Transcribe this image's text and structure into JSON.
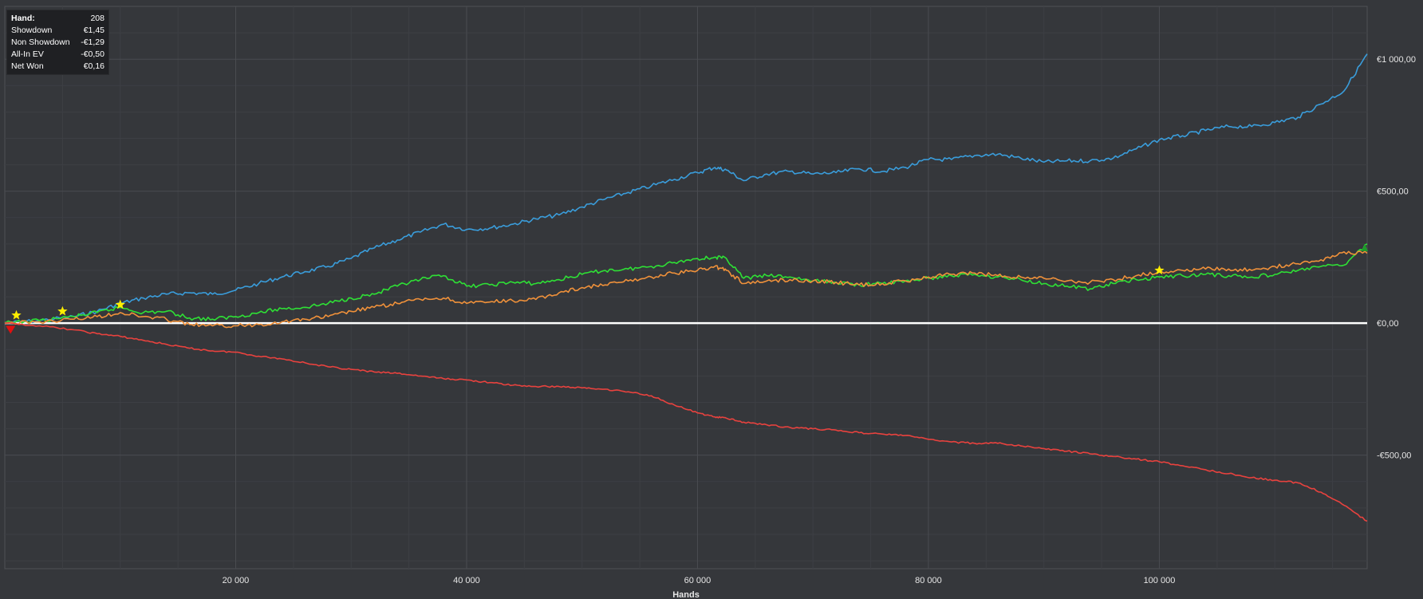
{
  "colors": {
    "background": "#35373b",
    "plot_background": "#35373b",
    "grid": "#4a4c51",
    "zero_line": "#ffffff",
    "blue": "#3a9ddb",
    "green": "#2ee035",
    "orange": "#f0913a",
    "red": "#e8423e",
    "star": "#ffee00",
    "down_marker": "#e01010"
  },
  "stats": {
    "rows": [
      {
        "label": "Hand:",
        "value": "208"
      },
      {
        "label": "Showdown",
        "value": "€1,45"
      },
      {
        "label": "Non Showdown",
        "value": "-€1,29"
      },
      {
        "label": "All-In EV",
        "value": "-€0,50"
      },
      {
        "label": "Net Won",
        "value": "€0,16"
      }
    ]
  },
  "chart_data": {
    "type": "line",
    "title": "",
    "xlabel": "Hands",
    "ylabel": "",
    "xlim": [
      0,
      118000
    ],
    "ylim": [
      -930,
      1200
    ],
    "x_ticks": [
      20000,
      40000,
      60000,
      80000,
      100000
    ],
    "x_tick_labels": [
      "20 000",
      "40 000",
      "60 000",
      "80 000",
      "100 000"
    ],
    "y_ticks": [
      1000,
      500,
      0,
      -500
    ],
    "y_tick_labels": [
      "€1 000,00",
      "€500,00",
      "€0,00",
      "-€500,00"
    ],
    "grid": true,
    "legend": "none",
    "series": [
      {
        "color_key": "blue",
        "x": [
          0,
          3000,
          6000,
          8000,
          10000,
          12000,
          14000,
          16000,
          18000,
          20000,
          22000,
          24000,
          26000,
          28000,
          30000,
          32000,
          34000,
          36000,
          38000,
          40000,
          42000,
          44000,
          46000,
          48000,
          50000,
          52000,
          54000,
          56000,
          58000,
          60000,
          61500,
          62500,
          64000,
          66000,
          68000,
          70000,
          72000,
          74000,
          76000,
          78000,
          80000,
          82000,
          84000,
          86000,
          88000,
          90000,
          92000,
          94000,
          96000,
          98000,
          100000,
          102000,
          104000,
          106000,
          108000,
          110000,
          112000,
          114000,
          116000,
          118000
        ],
        "y": [
          0,
          10,
          25,
          45,
          75,
          95,
          110,
          115,
          110,
          125,
          150,
          175,
          195,
          215,
          245,
          285,
          315,
          345,
          375,
          355,
          360,
          375,
          395,
          410,
          440,
          470,
          495,
          520,
          545,
          570,
          590,
          580,
          540,
          565,
          575,
          565,
          570,
          585,
          575,
          590,
          620,
          620,
          635,
          640,
          625,
          610,
          615,
          615,
          625,
          660,
          695,
          710,
          730,
          745,
          745,
          760,
          780,
          830,
          880,
          1020
        ]
      },
      {
        "color_key": "green",
        "x": [
          0,
          3000,
          6000,
          8000,
          10000,
          12000,
          14000,
          16000,
          18000,
          20000,
          22000,
          24000,
          26000,
          28000,
          30000,
          32000,
          34000,
          36000,
          38000,
          40000,
          42000,
          44000,
          46000,
          48000,
          50000,
          52000,
          54000,
          56000,
          58000,
          60000,
          61500,
          62500,
          64000,
          66000,
          68000,
          70000,
          72000,
          74000,
          76000,
          78000,
          80000,
          82000,
          84000,
          86000,
          88000,
          90000,
          92000,
          94000,
          96000,
          98000,
          100000,
          102000,
          104000,
          106000,
          108000,
          110000,
          112000,
          114000,
          116000,
          118000
        ],
        "y": [
          0,
          10,
          25,
          40,
          60,
          40,
          45,
          20,
          15,
          25,
          40,
          55,
          60,
          75,
          95,
          110,
          140,
          165,
          180,
          140,
          145,
          155,
          150,
          165,
          185,
          200,
          205,
          215,
          230,
          245,
          250,
          245,
          170,
          180,
          175,
          160,
          155,
          145,
          150,
          160,
          170,
          180,
          185,
          175,
          165,
          150,
          140,
          130,
          150,
          165,
          175,
          180,
          185,
          180,
          175,
          185,
          200,
          215,
          220,
          300
        ]
      },
      {
        "color_key": "orange",
        "x": [
          0,
          3000,
          6000,
          8000,
          10000,
          12000,
          14000,
          16000,
          18000,
          20000,
          22000,
          24000,
          26000,
          28000,
          30000,
          32000,
          34000,
          36000,
          38000,
          40000,
          42000,
          44000,
          46000,
          48000,
          50000,
          52000,
          54000,
          56000,
          58000,
          60000,
          61500,
          62500,
          64000,
          66000,
          68000,
          70000,
          72000,
          74000,
          76000,
          78000,
          80000,
          82000,
          84000,
          86000,
          88000,
          90000,
          92000,
          94000,
          96000,
          98000,
          100000,
          102000,
          104000,
          106000,
          108000,
          110000,
          112000,
          114000,
          116000,
          118000
        ],
        "y": [
          0,
          5,
          15,
          25,
          40,
          25,
          15,
          -5,
          -10,
          -10,
          -5,
          5,
          15,
          25,
          45,
          60,
          75,
          90,
          95,
          75,
          80,
          85,
          90,
          115,
          135,
          145,
          160,
          175,
          190,
          200,
          215,
          200,
          150,
          160,
          165,
          160,
          155,
          145,
          150,
          160,
          175,
          185,
          190,
          180,
          175,
          170,
          160,
          155,
          165,
          180,
          195,
          200,
          205,
          205,
          200,
          215,
          225,
          240,
          270,
          265
        ]
      },
      {
        "color_key": "red",
        "x": [
          0,
          3000,
          6000,
          8000,
          10000,
          12000,
          14000,
          16000,
          18000,
          20000,
          22000,
          24000,
          26000,
          28000,
          30000,
          32000,
          34000,
          36000,
          38000,
          40000,
          42000,
          44000,
          46000,
          48000,
          50000,
          52000,
          54000,
          56000,
          58000,
          60000,
          61500,
          62500,
          64000,
          66000,
          68000,
          70000,
          72000,
          74000,
          76000,
          78000,
          80000,
          82000,
          84000,
          86000,
          88000,
          90000,
          92000,
          94000,
          96000,
          98000,
          100000,
          102000,
          104000,
          106000,
          108000,
          110000,
          112000,
          114000,
          116000,
          118000
        ],
        "y": [
          0,
          -10,
          -25,
          -40,
          -50,
          -65,
          -80,
          -95,
          -105,
          -110,
          -125,
          -135,
          -150,
          -165,
          -175,
          -185,
          -190,
          -200,
          -210,
          -215,
          -225,
          -235,
          -240,
          -240,
          -245,
          -250,
          -260,
          -275,
          -310,
          -340,
          -355,
          -360,
          -375,
          -385,
          -395,
          -400,
          -405,
          -415,
          -420,
          -425,
          -440,
          -450,
          -455,
          -455,
          -465,
          -475,
          -485,
          -495,
          -505,
          -515,
          -525,
          -540,
          -555,
          -570,
          -585,
          -595,
          -605,
          -640,
          -690,
          -750
        ]
      }
    ],
    "markers": [
      {
        "shape": "star",
        "x": 1000,
        "y": 30
      },
      {
        "shape": "star",
        "x": 5000,
        "y": 45
      },
      {
        "shape": "star",
        "x": 10000,
        "y": 70
      },
      {
        "shape": "star",
        "x": 100000,
        "y": 200
      },
      {
        "shape": "triangle-down",
        "x": 500,
        "y": -25
      },
      {
        "shape": "up-marker",
        "x": 117800,
        "y": 285
      }
    ]
  }
}
